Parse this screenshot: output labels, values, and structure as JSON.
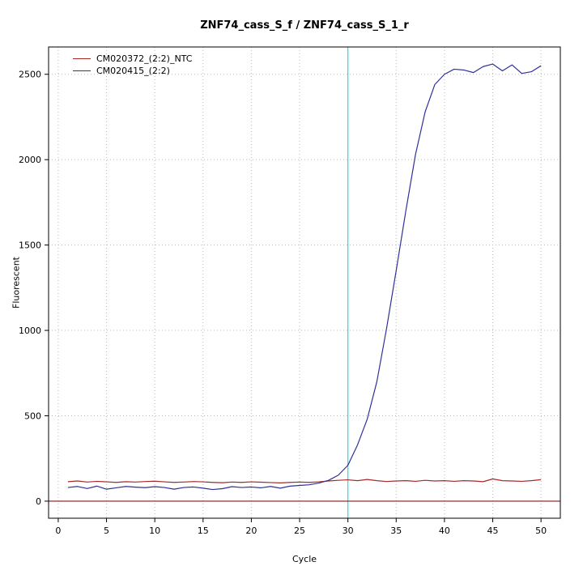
{
  "title": "ZNF74_cass_S_f / ZNF74_cass_S_1_r",
  "chart_data": {
    "type": "line",
    "title": "ZNF74_cass_S_f / ZNF74_cass_S_1_r",
    "xlabel": "Cycle",
    "ylabel": "Fluorescent",
    "xlim": [
      -1,
      52
    ],
    "ylim": [
      -100,
      2660
    ],
    "x_ticks": [
      0,
      5,
      10,
      15,
      20,
      25,
      30,
      35,
      40,
      45,
      50
    ],
    "y_ticks": [
      0,
      500,
      1000,
      1500,
      2000,
      2500
    ],
    "grid": true,
    "grid_color": "#b9b9b9",
    "legend_position": "top-left",
    "threshold_cycle_line": {
      "x": 30,
      "color": "#00eeee"
    },
    "baseline": {
      "y": 0,
      "color": "#7b1d1d"
    },
    "x": [
      1,
      2,
      3,
      4,
      5,
      6,
      7,
      8,
      9,
      10,
      11,
      12,
      13,
      14,
      15,
      16,
      17,
      18,
      19,
      20,
      21,
      22,
      23,
      24,
      25,
      26,
      27,
      28,
      29,
      30,
      31,
      32,
      33,
      34,
      35,
      36,
      37,
      38,
      39,
      40,
      41,
      42,
      43,
      44,
      45,
      46,
      47,
      48,
      49,
      50
    ],
    "series": [
      {
        "name": "CM020372_(2:2)_NTC",
        "color": "#a52a2a",
        "values": [
          114,
          118,
          112,
          116,
          113,
          110,
          114,
          112,
          115,
          117,
          113,
          110,
          112,
          115,
          113,
          110,
          108,
          112,
          110,
          113,
          111,
          109,
          107,
          110,
          112,
          110,
          113,
          118,
          122,
          125,
          120,
          127,
          120,
          115,
          118,
          120,
          116,
          122,
          118,
          120,
          116,
          120,
          118,
          114,
          130,
          120,
          118,
          116,
          120,
          126
        ]
      },
      {
        "name": "CM020415_(2:2)",
        "color": "#30309c",
        "values": [
          80,
          86,
          74,
          88,
          70,
          78,
          86,
          82,
          79,
          85,
          80,
          70,
          80,
          83,
          76,
          68,
          73,
          85,
          80,
          83,
          78,
          86,
          76,
          88,
          92,
          96,
          106,
          122,
          152,
          210,
          330,
          480,
          700,
          1010,
          1350,
          1700,
          2030,
          2280,
          2440,
          2500,
          2530,
          2525,
          2510,
          2545,
          2560,
          2520,
          2555,
          2505,
          2515,
          2550
        ]
      }
    ]
  }
}
